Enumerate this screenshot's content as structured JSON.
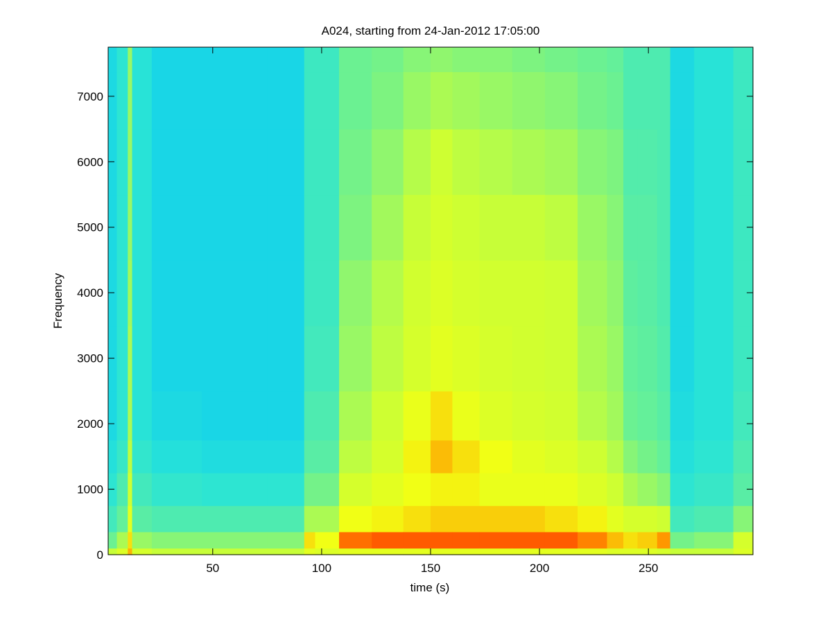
{
  "chart_data": {
    "type": "heatmap",
    "title": "A024, starting from 24-Jan-2012 17:05:00",
    "xlabel": "time (s)",
    "ylabel": "Frequency",
    "xlim": [
      2,
      298
    ],
    "ylim": [
      0,
      7750
    ],
    "xticks": [
      50,
      100,
      150,
      200,
      250
    ],
    "yticks": [
      0,
      1000,
      2000,
      3000,
      4000,
      5000,
      6000,
      7000
    ],
    "xtick_labels": [
      "50",
      "100",
      "150",
      "200",
      "250"
    ],
    "ytick_labels": [
      "0",
      "1000",
      "2000",
      "3000",
      "4000",
      "5000",
      "6000",
      "7000"
    ],
    "colormap": "jet",
    "colormap_stops": [
      "#000080",
      "#0000ff",
      "#00bfff",
      "#29e4d6",
      "#66f097",
      "#ccff33",
      "#f3ff13",
      "#ff9900",
      "#ff2a00",
      "#800000"
    ],
    "grid": false,
    "intensity_time_s": [
      2,
      10,
      12,
      14,
      30,
      60,
      90,
      94,
      100,
      116,
      130,
      145,
      155,
      165,
      180,
      195,
      210,
      225,
      237,
      240,
      250,
      258,
      262,
      280,
      298
    ],
    "intensity_freq_hz": [
      0,
      200,
      500,
      1000,
      1500,
      2000,
      3000,
      4000,
      5000,
      6000,
      7000,
      7750
    ],
    "intensity_values": [
      [
        0.55,
        0.45,
        0.38,
        0.34,
        0.32,
        0.3,
        0.3,
        0.3,
        0.3,
        0.3,
        0.3,
        0.3
      ],
      [
        0.6,
        0.52,
        0.44,
        0.4,
        0.36,
        0.34,
        0.34,
        0.34,
        0.34,
        0.34,
        0.34,
        0.34
      ],
      [
        0.75,
        0.7,
        0.62,
        0.56,
        0.54,
        0.52,
        0.52,
        0.51,
        0.5,
        0.5,
        0.5,
        0.5
      ],
      [
        0.58,
        0.5,
        0.42,
        0.38,
        0.35,
        0.33,
        0.33,
        0.33,
        0.33,
        0.33,
        0.33,
        0.33
      ],
      [
        0.55,
        0.48,
        0.4,
        0.35,
        0.32,
        0.3,
        0.29,
        0.29,
        0.29,
        0.29,
        0.29,
        0.29
      ],
      [
        0.55,
        0.48,
        0.4,
        0.34,
        0.31,
        0.29,
        0.29,
        0.29,
        0.29,
        0.29,
        0.29,
        0.29
      ],
      [
        0.55,
        0.48,
        0.4,
        0.34,
        0.31,
        0.29,
        0.29,
        0.29,
        0.29,
        0.29,
        0.29,
        0.29
      ],
      [
        0.62,
        0.7,
        0.52,
        0.46,
        0.42,
        0.4,
        0.38,
        0.37,
        0.37,
        0.37,
        0.37,
        0.37
      ],
      [
        0.6,
        0.66,
        0.52,
        0.46,
        0.42,
        0.4,
        0.38,
        0.37,
        0.37,
        0.37,
        0.37,
        0.37
      ],
      [
        0.62,
        0.82,
        0.66,
        0.58,
        0.54,
        0.52,
        0.5,
        0.49,
        0.47,
        0.46,
        0.45,
        0.45
      ],
      [
        0.62,
        0.84,
        0.68,
        0.62,
        0.58,
        0.56,
        0.54,
        0.53,
        0.51,
        0.49,
        0.47,
        0.46
      ],
      [
        0.62,
        0.84,
        0.7,
        0.66,
        0.68,
        0.64,
        0.58,
        0.57,
        0.55,
        0.53,
        0.5,
        0.48
      ],
      [
        0.62,
        0.84,
        0.72,
        0.68,
        0.74,
        0.7,
        0.62,
        0.6,
        0.58,
        0.56,
        0.52,
        0.49
      ],
      [
        0.62,
        0.84,
        0.72,
        0.68,
        0.7,
        0.64,
        0.6,
        0.58,
        0.56,
        0.54,
        0.51,
        0.48
      ],
      [
        0.62,
        0.84,
        0.72,
        0.64,
        0.66,
        0.6,
        0.58,
        0.57,
        0.55,
        0.53,
        0.5,
        0.48
      ],
      [
        0.62,
        0.84,
        0.72,
        0.64,
        0.62,
        0.58,
        0.57,
        0.57,
        0.55,
        0.52,
        0.49,
        0.47
      ],
      [
        0.62,
        0.84,
        0.7,
        0.64,
        0.6,
        0.57,
        0.56,
        0.56,
        0.54,
        0.51,
        0.48,
        0.46
      ],
      [
        0.62,
        0.8,
        0.68,
        0.6,
        0.56,
        0.53,
        0.52,
        0.51,
        0.5,
        0.48,
        0.46,
        0.45
      ],
      [
        0.6,
        0.74,
        0.62,
        0.56,
        0.53,
        0.51,
        0.5,
        0.49,
        0.48,
        0.47,
        0.45,
        0.44
      ],
      [
        0.6,
        0.7,
        0.58,
        0.52,
        0.48,
        0.45,
        0.44,
        0.43,
        0.42,
        0.41,
        0.4,
        0.4
      ],
      [
        0.6,
        0.72,
        0.58,
        0.5,
        0.46,
        0.44,
        0.43,
        0.42,
        0.42,
        0.41,
        0.4,
        0.4
      ],
      [
        0.58,
        0.78,
        0.56,
        0.48,
        0.44,
        0.42,
        0.41,
        0.4,
        0.4,
        0.4,
        0.4,
        0.4
      ],
      [
        0.55,
        0.46,
        0.38,
        0.34,
        0.32,
        0.31,
        0.3,
        0.3,
        0.3,
        0.3,
        0.3,
        0.3
      ],
      [
        0.55,
        0.48,
        0.4,
        0.36,
        0.34,
        0.33,
        0.33,
        0.33,
        0.33,
        0.33,
        0.33,
        0.33
      ],
      [
        0.6,
        0.58,
        0.48,
        0.42,
        0.4,
        0.38,
        0.37,
        0.37,
        0.37,
        0.37,
        0.37,
        0.37
      ]
    ]
  }
}
